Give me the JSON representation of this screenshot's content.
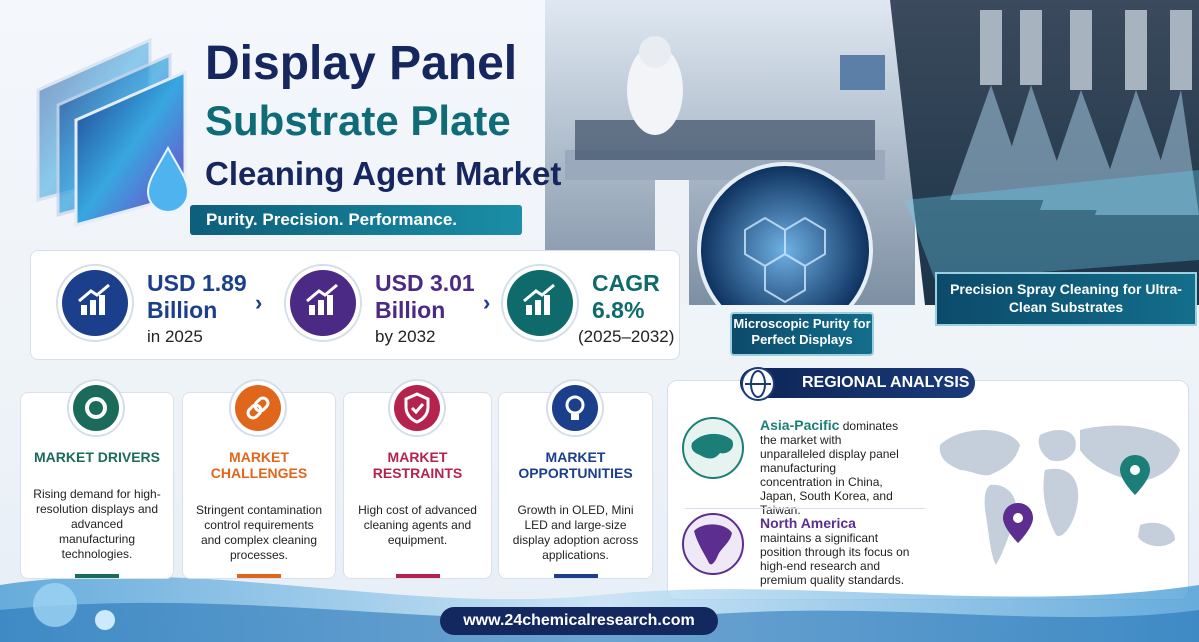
{
  "header": {
    "title_lines": [
      "Display Panel",
      "Substrate Plate",
      "Cleaning Agent Market"
    ],
    "tagline": "Purity. Precision. Performance."
  },
  "stats": [
    {
      "line1": "USD 1.89",
      "line2": "Billion",
      "line3": "in 2025"
    },
    {
      "line1": "USD 3.01",
      "line2": "Billion",
      "line3": "by 2032"
    },
    {
      "line1": "CAGR",
      "line2": "6.8%",
      "line3": "(2025–2032)"
    }
  ],
  "photo_captions": {
    "microscopic": "Microscopic Purity for Perfect Displays",
    "spray": "Precision Spray Cleaning for Ultra-Clean Substrates"
  },
  "cards": [
    {
      "title": "MARKET DRIVERS",
      "body": "Rising demand for high-resolution displays and advanced manufacturing technologies."
    },
    {
      "title": "MARKET CHALLENGES",
      "body": "Stringent contamination control requirements and complex cleaning processes."
    },
    {
      "title": "MARKET RESTRAINTS",
      "body": "High cost of advanced cleaning agents and equipment."
    },
    {
      "title": "MARKET OPPORTUNITIES",
      "body": "Growth in OLED, Mini LED and large-size display adoption across applications."
    }
  ],
  "regional": {
    "title": "REGIONAL ANALYSIS",
    "regions": [
      {
        "name": "Asia-Pacific",
        "text": "dominates the market with unparalleled display panel manufacturing concentration in China, Japan, South Korea, and Taiwan."
      },
      {
        "name": "North America",
        "text": "maintains a significant position through its focus on high-end research and premium quality standards."
      }
    ]
  },
  "footer": {
    "url": "www.24chemicalresearch.com"
  }
}
